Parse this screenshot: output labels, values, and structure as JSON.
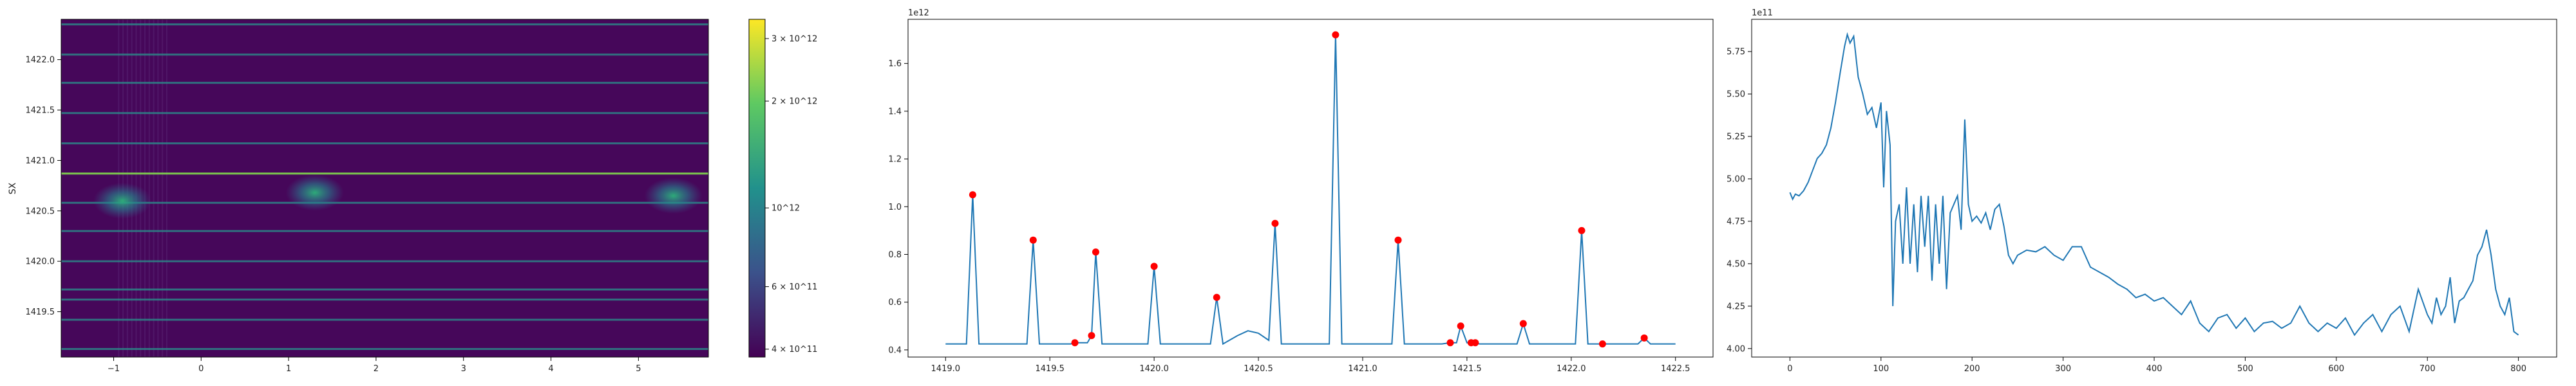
{
  "chart_data": [
    {
      "type": "heatmap",
      "title": "",
      "xlabel": "",
      "ylabel": "SX",
      "xlim": [
        -1.6,
        5.8
      ],
      "ylim": [
        1419.05,
        1422.4
      ],
      "xticks": [
        "−1",
        "0",
        "1",
        "2",
        "3",
        "4",
        "5"
      ],
      "xtick_values": [
        -1,
        0,
        1,
        2,
        3,
        4,
        5
      ],
      "yticks": [
        "1419.5",
        "1420.0",
        "1420.5",
        "1421.0",
        "1421.5",
        "1422.0"
      ],
      "ytick_values": [
        1419.5,
        1420.0,
        1420.5,
        1421.0,
        1421.5,
        1422.0
      ],
      "colorscale": "viridis",
      "color_scale_type": "log",
      "colorbar": {
        "ticks": [
          "3 × 10^12",
          "2 × 10^12",
          "10^12",
          "6 × 10^11",
          "4 × 10^11"
        ],
        "tick_values": [
          3000000000000.0,
          2000000000000.0,
          1000000000000.0,
          600000000000.0,
          400000000000.0
        ],
        "range": [
          380000000000.0,
          3400000000000.0
        ]
      },
      "bright_rows_sx": [
        1419.13,
        1419.42,
        1419.62,
        1419.72,
        1420.0,
        1420.3,
        1420.58,
        1420.87,
        1421.17,
        1421.47,
        1421.77,
        1422.05,
        1422.35
      ],
      "hot_spots": [
        {
          "x": -0.9,
          "sx": 1420.6,
          "value": 1200000000000.0
        },
        {
          "x": 1.3,
          "sx": 1420.68,
          "value": 900000000000.0
        },
        {
          "x": 5.4,
          "sx": 1420.65,
          "value": 1300000000000.0
        }
      ]
    },
    {
      "type": "line",
      "title": "",
      "xlabel": "",
      "ylabel": "",
      "scale_label": "1e12",
      "xlim": [
        1418.82,
        1422.68
      ],
      "ylim": [
        0.37,
        1.785
      ],
      "xticks": [
        "1419.0",
        "1419.5",
        "1420.0",
        "1420.5",
        "1421.0",
        "1421.5",
        "1422.0",
        "1422.5"
      ],
      "xtick_values": [
        1419.0,
        1419.5,
        1420.0,
        1420.5,
        1421.0,
        1421.5,
        1422.0,
        1422.5
      ],
      "yticks": [
        "0.4",
        "0.6",
        "0.8",
        "1.0",
        "1.2",
        "1.4",
        "1.6"
      ],
      "ytick_values": [
        0.4,
        0.6,
        0.8,
        1.0,
        1.2,
        1.4,
        1.6
      ],
      "series": [
        {
          "color": "#1f77b4",
          "x": [
            1419.0,
            1419.1,
            1419.13,
            1419.16,
            1419.39,
            1419.42,
            1419.45,
            1419.6,
            1419.62,
            1419.68,
            1419.7,
            1419.72,
            1419.75,
            1419.97,
            1420.0,
            1420.03,
            1420.27,
            1420.3,
            1420.33,
            1420.4,
            1420.45,
            1420.5,
            1420.55,
            1420.58,
            1420.61,
            1420.84,
            1420.87,
            1420.9,
            1421.14,
            1421.17,
            1421.2,
            1421.38,
            1421.42,
            1421.45,
            1421.47,
            1421.5,
            1421.52,
            1421.54,
            1421.56,
            1421.74,
            1421.77,
            1421.8,
            1422.02,
            1422.05,
            1422.08,
            1422.15,
            1422.32,
            1422.35,
            1422.38,
            1422.5
          ],
          "y": [
            0.425,
            0.425,
            1.05,
            0.425,
            0.425,
            0.86,
            0.425,
            0.425,
            0.43,
            0.43,
            0.46,
            0.81,
            0.425,
            0.425,
            0.75,
            0.425,
            0.425,
            0.62,
            0.425,
            0.46,
            0.48,
            0.47,
            0.44,
            0.93,
            0.425,
            0.425,
            1.72,
            0.425,
            0.425,
            0.86,
            0.425,
            0.425,
            0.43,
            0.43,
            0.5,
            0.43,
            0.43,
            0.43,
            0.425,
            0.425,
            0.51,
            0.425,
            0.425,
            0.9,
            0.425,
            0.425,
            0.425,
            0.45,
            0.425,
            0.425
          ]
        }
      ],
      "markers": {
        "color": "#ff0000",
        "x": [
          1419.13,
          1419.42,
          1419.62,
          1419.7,
          1419.72,
          1420.0,
          1420.3,
          1420.58,
          1420.87,
          1421.17,
          1421.42,
          1421.47,
          1421.52,
          1421.54,
          1421.77,
          1422.05,
          1422.15,
          1422.35
        ],
        "y": [
          1.05,
          0.86,
          0.43,
          0.46,
          0.81,
          0.75,
          0.62,
          0.93,
          1.72,
          0.86,
          0.43,
          0.5,
          0.43,
          0.43,
          0.51,
          0.9,
          0.425,
          0.45
        ]
      }
    },
    {
      "type": "line",
      "title": "",
      "xlabel": "",
      "ylabel": "",
      "scale_label": "1e11",
      "xlim": [
        -42,
        842
      ],
      "ylim": [
        3.95,
        5.94
      ],
      "xticks": [
        "0",
        "100",
        "200",
        "300",
        "400",
        "500",
        "600",
        "700",
        "800"
      ],
      "xtick_values": [
        0,
        100,
        200,
        300,
        400,
        500,
        600,
        700,
        800
      ],
      "yticks": [
        "4.00",
        "4.25",
        "4.50",
        "4.75",
        "5.00",
        "5.25",
        "5.50",
        "5.75"
      ],
      "ytick_values": [
        4.0,
        4.25,
        4.5,
        4.75,
        5.0,
        5.25,
        5.5,
        5.75
      ],
      "series": [
        {
          "color": "#1f77b4",
          "x": [
            0,
            3,
            6,
            10,
            15,
            20,
            25,
            30,
            35,
            40,
            45,
            50,
            55,
            60,
            63,
            66,
            70,
            75,
            80,
            85,
            90,
            95,
            100,
            103,
            106,
            110,
            113,
            116,
            120,
            124,
            128,
            132,
            136,
            140,
            144,
            148,
            152,
            156,
            160,
            164,
            168,
            172,
            176,
            180,
            184,
            188,
            192,
            196,
            200,
            205,
            210,
            215,
            220,
            225,
            230,
            235,
            240,
            245,
            250,
            260,
            270,
            280,
            290,
            300,
            310,
            320,
            330,
            340,
            350,
            360,
            370,
            380,
            390,
            400,
            410,
            420,
            430,
            440,
            450,
            460,
            470,
            480,
            490,
            500,
            510,
            520,
            530,
            540,
            550,
            560,
            570,
            580,
            590,
            600,
            610,
            620,
            630,
            640,
            650,
            660,
            670,
            680,
            690,
            700,
            705,
            710,
            715,
            720,
            725,
            730,
            735,
            740,
            745,
            750,
            755,
            760,
            765,
            770,
            775,
            780,
            785,
            790,
            795,
            800
          ],
          "y": [
            4.92,
            4.88,
            4.91,
            4.9,
            4.93,
            4.98,
            5.05,
            5.12,
            5.15,
            5.2,
            5.3,
            5.45,
            5.62,
            5.78,
            5.85,
            5.8,
            5.84,
            5.6,
            5.5,
            5.38,
            5.42,
            5.3,
            5.45,
            4.95,
            5.4,
            5.2,
            4.25,
            4.75,
            4.85,
            4.5,
            4.95,
            4.5,
            4.85,
            4.45,
            4.9,
            4.6,
            4.9,
            4.4,
            4.85,
            4.5,
            4.9,
            4.35,
            4.8,
            4.85,
            4.9,
            4.7,
            5.35,
            4.85,
            4.75,
            4.78,
            4.74,
            4.8,
            4.7,
            4.82,
            4.85,
            4.72,
            4.55,
            4.5,
            4.55,
            4.58,
            4.57,
            4.6,
            4.55,
            4.52,
            4.6,
            4.6,
            4.48,
            4.45,
            4.42,
            4.38,
            4.35,
            4.3,
            4.32,
            4.28,
            4.3,
            4.25,
            4.2,
            4.28,
            4.15,
            4.1,
            4.18,
            4.2,
            4.12,
            4.18,
            4.1,
            4.15,
            4.16,
            4.12,
            4.15,
            4.25,
            4.15,
            4.1,
            4.15,
            4.12,
            4.18,
            4.08,
            4.15,
            4.2,
            4.1,
            4.2,
            4.25,
            4.1,
            4.35,
            4.2,
            4.15,
            4.3,
            4.2,
            4.25,
            4.42,
            4.15,
            4.28,
            4.3,
            4.35,
            4.4,
            4.55,
            4.6,
            4.7,
            4.55,
            4.35,
            4.25,
            4.2,
            4.3,
            4.1,
            4.08
          ]
        }
      ]
    }
  ]
}
